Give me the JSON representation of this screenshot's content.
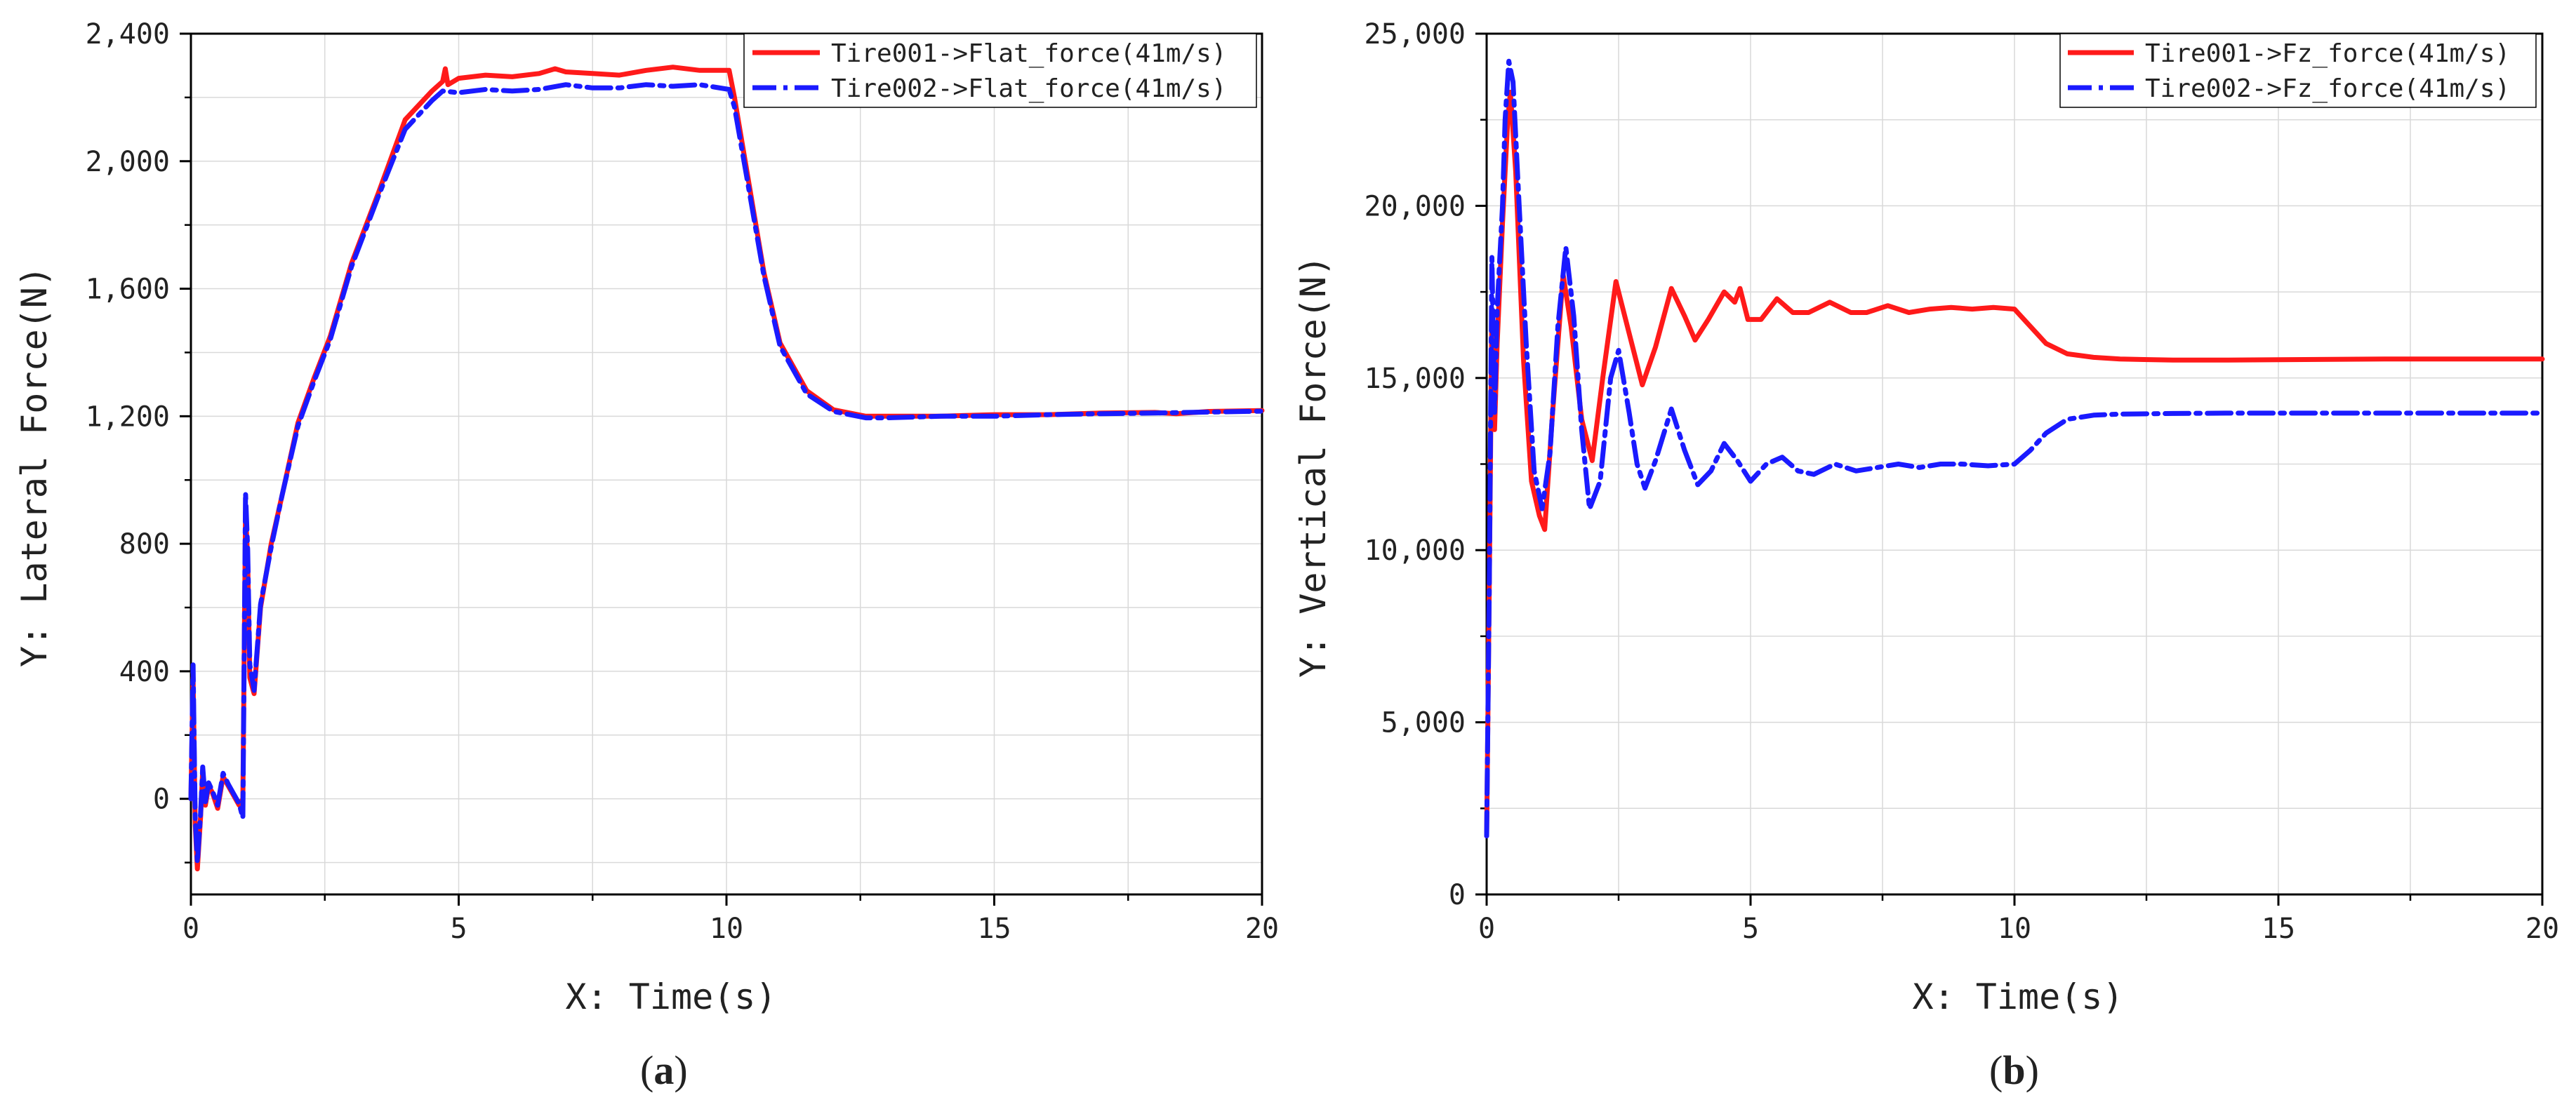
{
  "colors": {
    "red": "#ff1a1a",
    "blue": "#1a1aff",
    "grid": "#d9d9d9",
    "axis": "#000000"
  },
  "chart_data": [
    {
      "id": "a",
      "type": "line",
      "panel_label": {
        "open": "(",
        "letter": "a",
        "close": ")"
      },
      "xlabel": "X: Time(s)",
      "ylabel": "Y: Lateral Force(N)",
      "xlim": [
        0,
        20
      ],
      "ylim": [
        -300,
        2400
      ],
      "xticks": [
        0,
        5,
        10,
        15,
        20
      ],
      "xtick_labels": [
        "0",
        "5",
        "10",
        "15",
        "20"
      ],
      "yticks": [
        0,
        400,
        800,
        1200,
        1600,
        2000,
        2400
      ],
      "ytick_labels": [
        "0",
        "400",
        "800",
        "1,200",
        "1,600",
        "2,000",
        "2,400"
      ],
      "grid": true,
      "legend_position": "top-right",
      "series": [
        {
          "name": "Tire001->Flat_force(41m/s)",
          "color": "#ff1a1a",
          "style": "solid",
          "points": [
            [
              0,
              0
            ],
            [
              0.04,
              380
            ],
            [
              0.08,
              -80
            ],
            [
              0.12,
              -220
            ],
            [
              0.18,
              -60
            ],
            [
              0.22,
              90
            ],
            [
              0.27,
              -20
            ],
            [
              0.33,
              40
            ],
            [
              0.4,
              20
            ],
            [
              0.5,
              -30
            ],
            [
              0.6,
              70
            ],
            [
              0.7,
              40
            ],
            [
              0.8,
              10
            ],
            [
              0.9,
              -20
            ],
            [
              0.97,
              0
            ],
            [
              1.02,
              900
            ],
            [
              1.06,
              750
            ],
            [
              1.1,
              380
            ],
            [
              1.18,
              330
            ],
            [
              1.3,
              600
            ],
            [
              1.5,
              800
            ],
            [
              1.7,
              950
            ],
            [
              2,
              1180
            ],
            [
              2.3,
              1320
            ],
            [
              2.6,
              1450
            ],
            [
              3,
              1680
            ],
            [
              3.5,
              1900
            ],
            [
              4,
              2130
            ],
            [
              4.5,
              2220
            ],
            [
              4.7,
              2250
            ],
            [
              4.75,
              2290
            ],
            [
              4.8,
              2240
            ],
            [
              5,
              2260
            ],
            [
              5.5,
              2270
            ],
            [
              6,
              2265
            ],
            [
              6.5,
              2275
            ],
            [
              6.8,
              2290
            ],
            [
              7,
              2280
            ],
            [
              7.5,
              2275
            ],
            [
              8,
              2270
            ],
            [
              8.5,
              2285
            ],
            [
              9,
              2295
            ],
            [
              9.5,
              2285
            ],
            [
              10.05,
              2285
            ],
            [
              10.15,
              2200
            ],
            [
              10.4,
              1950
            ],
            [
              10.7,
              1650
            ],
            [
              11,
              1430
            ],
            [
              11.5,
              1280
            ],
            [
              12,
              1220
            ],
            [
              12.6,
              1200
            ],
            [
              13,
              1200
            ],
            [
              14,
              1200
            ],
            [
              15,
              1205
            ],
            [
              16,
              1205
            ],
            [
              17,
              1210
            ],
            [
              18,
              1212
            ],
            [
              18.4,
              1208
            ],
            [
              19,
              1215
            ],
            [
              20,
              1218
            ]
          ]
        },
        {
          "name": "Tire002->Flat_force(41m/s)",
          "color": "#1a1aff",
          "style": "dashdot",
          "points": [
            [
              0,
              0
            ],
            [
              0.04,
              420
            ],
            [
              0.08,
              -60
            ],
            [
              0.12,
              -200
            ],
            [
              0.18,
              -50
            ],
            [
              0.22,
              100
            ],
            [
              0.27,
              -10
            ],
            [
              0.33,
              50
            ],
            [
              0.4,
              25
            ],
            [
              0.5,
              -20
            ],
            [
              0.6,
              80
            ],
            [
              0.7,
              45
            ],
            [
              0.8,
              15
            ],
            [
              0.9,
              -15
            ],
            [
              0.97,
              -60
            ],
            [
              1.02,
              960
            ],
            [
              1.06,
              780
            ],
            [
              1.1,
              420
            ],
            [
              1.18,
              340
            ],
            [
              1.3,
              610
            ],
            [
              1.5,
              790
            ],
            [
              1.7,
              950
            ],
            [
              2,
              1170
            ],
            [
              2.3,
              1310
            ],
            [
              2.6,
              1440
            ],
            [
              3,
              1670
            ],
            [
              3.5,
              1890
            ],
            [
              4,
              2100
            ],
            [
              4.5,
              2190
            ],
            [
              4.7,
              2220
            ],
            [
              5,
              2215
            ],
            [
              5.5,
              2225
            ],
            [
              6,
              2220
            ],
            [
              6.5,
              2225
            ],
            [
              7,
              2240
            ],
            [
              7.5,
              2230
            ],
            [
              8,
              2230
            ],
            [
              8.5,
              2240
            ],
            [
              9,
              2235
            ],
            [
              9.5,
              2240
            ],
            [
              10.05,
              2225
            ],
            [
              10.15,
              2170
            ],
            [
              10.4,
              1930
            ],
            [
              10.7,
              1640
            ],
            [
              11,
              1420
            ],
            [
              11.5,
              1270
            ],
            [
              12,
              1215
            ],
            [
              12.6,
              1195
            ],
            [
              13,
              1195
            ],
            [
              14,
              1200
            ],
            [
              15,
              1200
            ],
            [
              16,
              1205
            ],
            [
              17,
              1208
            ],
            [
              18,
              1210
            ],
            [
              19,
              1213
            ],
            [
              20,
              1216
            ]
          ]
        }
      ]
    },
    {
      "id": "b",
      "type": "line",
      "panel_label": {
        "open": "(",
        "letter": "b",
        "close": ")"
      },
      "xlabel": "X: Time(s)",
      "ylabel": "Y: Vertical Force(N)",
      "xlim": [
        0,
        20
      ],
      "ylim": [
        0,
        25000
      ],
      "xticks": [
        0,
        5,
        10,
        15,
        20
      ],
      "xtick_labels": [
        "0",
        "5",
        "10",
        "15",
        "20"
      ],
      "yticks": [
        0,
        5000,
        10000,
        15000,
        20000,
        25000
      ],
      "ytick_labels": [
        "0",
        "5,000",
        "10,000",
        "15,000",
        "20,000",
        "25,000"
      ],
      "grid": true,
      "legend_position": "top-right",
      "series": [
        {
          "name": "Tire001->Fz_force(41m/s)",
          "color": "#ff1a1a",
          "style": "solid",
          "points": [
            [
              0,
              1700
            ],
            [
              0.05,
              9000
            ],
            [
              0.1,
              17000
            ],
            [
              0.15,
              13500
            ],
            [
              0.2,
              16000
            ],
            [
              0.3,
              19500
            ],
            [
              0.4,
              22500
            ],
            [
              0.45,
              23300
            ],
            [
              0.55,
              21000
            ],
            [
              0.7,
              15500
            ],
            [
              0.85,
              12000
            ],
            [
              1.0,
              11000
            ],
            [
              1.1,
              10600
            ],
            [
              1.25,
              14000
            ],
            [
              1.45,
              18000
            ],
            [
              1.6,
              16500
            ],
            [
              1.8,
              13800
            ],
            [
              2.0,
              12600
            ],
            [
              2.2,
              15000
            ],
            [
              2.45,
              17800
            ],
            [
              2.7,
              16300
            ],
            [
              2.95,
              14800
            ],
            [
              3.2,
              15900
            ],
            [
              3.5,
              17600
            ],
            [
              3.75,
              16800
            ],
            [
              3.95,
              16100
            ],
            [
              4.2,
              16700
            ],
            [
              4.5,
              17500
            ],
            [
              4.7,
              17200
            ],
            [
              4.8,
              17600
            ],
            [
              4.95,
              16700
            ],
            [
              5.2,
              16700
            ],
            [
              5.5,
              17300
            ],
            [
              5.8,
              16900
            ],
            [
              6.1,
              16900
            ],
            [
              6.5,
              17200
            ],
            [
              6.9,
              16900
            ],
            [
              7.2,
              16900
            ],
            [
              7.6,
              17100
            ],
            [
              8,
              16900
            ],
            [
              8.4,
              17000
            ],
            [
              8.8,
              17050
            ],
            [
              9.2,
              17000
            ],
            [
              9.6,
              17050
            ],
            [
              10.0,
              17000
            ],
            [
              10.3,
              16500
            ],
            [
              10.6,
              16000
            ],
            [
              11,
              15700
            ],
            [
              11.5,
              15600
            ],
            [
              12,
              15550
            ],
            [
              13,
              15520
            ],
            [
              14,
              15520
            ],
            [
              15,
              15530
            ],
            [
              16,
              15540
            ],
            [
              17,
              15550
            ],
            [
              18,
              15550
            ],
            [
              19,
              15550
            ],
            [
              20,
              15550
            ]
          ]
        },
        {
          "name": "Tire002->Fz_force(41m/s)",
          "color": "#1a1aff",
          "style": "dashdot",
          "points": [
            [
              0,
              1700
            ],
            [
              0.05,
              9000
            ],
            [
              0.1,
              18500
            ],
            [
              0.15,
              14000
            ],
            [
              0.2,
              17000
            ],
            [
              0.3,
              20000
            ],
            [
              0.35,
              22500
            ],
            [
              0.42,
              24200
            ],
            [
              0.5,
              23600
            ],
            [
              0.6,
              20500
            ],
            [
              0.75,
              16000
            ],
            [
              0.9,
              12300
            ],
            [
              1.05,
              11200
            ],
            [
              1.2,
              12800
            ],
            [
              1.35,
              16500
            ],
            [
              1.5,
              18800
            ],
            [
              1.65,
              16800
            ],
            [
              1.8,
              13500
            ],
            [
              1.95,
              11200
            ],
            [
              2.15,
              12000
            ],
            [
              2.35,
              15000
            ],
            [
              2.5,
              15800
            ],
            [
              2.7,
              14000
            ],
            [
              2.85,
              12500
            ],
            [
              3.0,
              11800
            ],
            [
              3.2,
              12600
            ],
            [
              3.5,
              14100
            ],
            [
              3.75,
              12900
            ],
            [
              4.0,
              11900
            ],
            [
              4.25,
              12300
            ],
            [
              4.5,
              13100
            ],
            [
              4.75,
              12600
            ],
            [
              5.0,
              12000
            ],
            [
              5.3,
              12500
            ],
            [
              5.6,
              12700
            ],
            [
              5.9,
              12300
            ],
            [
              6.2,
              12200
            ],
            [
              6.6,
              12500
            ],
            [
              7.0,
              12300
            ],
            [
              7.4,
              12400
            ],
            [
              7.8,
              12500
            ],
            [
              8.2,
              12400
            ],
            [
              8.6,
              12500
            ],
            [
              9.0,
              12500
            ],
            [
              9.5,
              12450
            ],
            [
              10.0,
              12500
            ],
            [
              10.3,
              12900
            ],
            [
              10.6,
              13400
            ],
            [
              11,
              13800
            ],
            [
              11.5,
              13920
            ],
            [
              12,
              13950
            ],
            [
              13,
              13970
            ],
            [
              14,
              13980
            ],
            [
              15,
              13980
            ],
            [
              16,
              13980
            ],
            [
              17,
              13980
            ],
            [
              18,
              13980
            ],
            [
              19,
              13980
            ],
            [
              20,
              13980
            ]
          ]
        }
      ]
    }
  ]
}
